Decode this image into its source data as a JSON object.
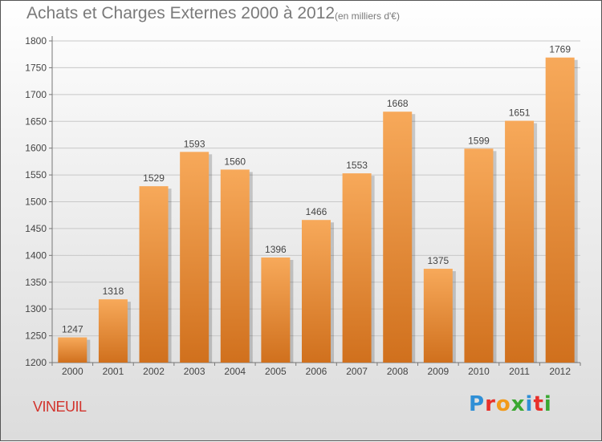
{
  "header": {
    "title": "Achats et Charges Externes 2000 à 2012",
    "subtitle": "(en milliers d'€)"
  },
  "footer": {
    "town": "VINEUIL",
    "logo_letters": [
      "P",
      "r",
      "o",
      "x",
      "i",
      "t",
      "i"
    ],
    "logo_colors": [
      "#2f8fd6",
      "#e8302a",
      "#f29a1a",
      "#3aa832",
      "#2f8fd6",
      "#e8302a",
      "#3aa832"
    ]
  },
  "chart_data": {
    "type": "bar",
    "title": "Achats et Charges Externes 2000 à 2012",
    "subtitle": "(en milliers d'€)",
    "categories": [
      "2000",
      "2001",
      "2002",
      "2003",
      "2004",
      "2005",
      "2006",
      "2007",
      "2008",
      "2009",
      "2010",
      "2011",
      "2012"
    ],
    "values": [
      1247,
      1318,
      1529,
      1593,
      1560,
      1396,
      1466,
      1553,
      1668,
      1375,
      1599,
      1651,
      1769
    ],
    "ylim": [
      1200,
      1800
    ],
    "yticks": [
      1200,
      1250,
      1300,
      1350,
      1400,
      1450,
      1500,
      1550,
      1600,
      1650,
      1700,
      1750,
      1800
    ],
    "grid": true,
    "bar_color_top": "#f7a95a",
    "bar_color_bottom": "#d0701d",
    "xlabel": "",
    "ylabel": ""
  }
}
